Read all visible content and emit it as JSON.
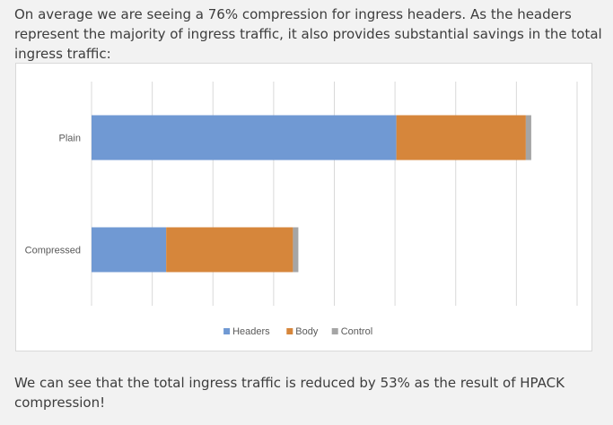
{
  "intro_text": "On average we are seeing a 76% compression for ingress headers. As the headers represent the majority of ingress traffic, it also provides substantial savings in the total ingress traffic:",
  "outro_text": "We can see that the total ingress traffic is reduced by 53% as the result of HPACK compression!",
  "chart_data": {
    "type": "bar",
    "orientation": "horizontal",
    "stacked": true,
    "title": "",
    "xlabel": "",
    "ylabel": "",
    "categories": [
      "Plain",
      "Compressed"
    ],
    "series": [
      {
        "name": "Headers",
        "color": "#7099d3",
        "values": [
          339,
          83
        ]
      },
      {
        "name": "Body",
        "color": "#d6863b",
        "values": [
          144,
          141
        ]
      },
      {
        "name": "Control",
        "color": "#a5a5a5",
        "values": [
          6,
          6
        ]
      }
    ],
    "xlim": [
      0,
      540
    ],
    "grid": true,
    "gridlines": 8,
    "tick_labels_visible": false,
    "legend_position": "bottom"
  }
}
